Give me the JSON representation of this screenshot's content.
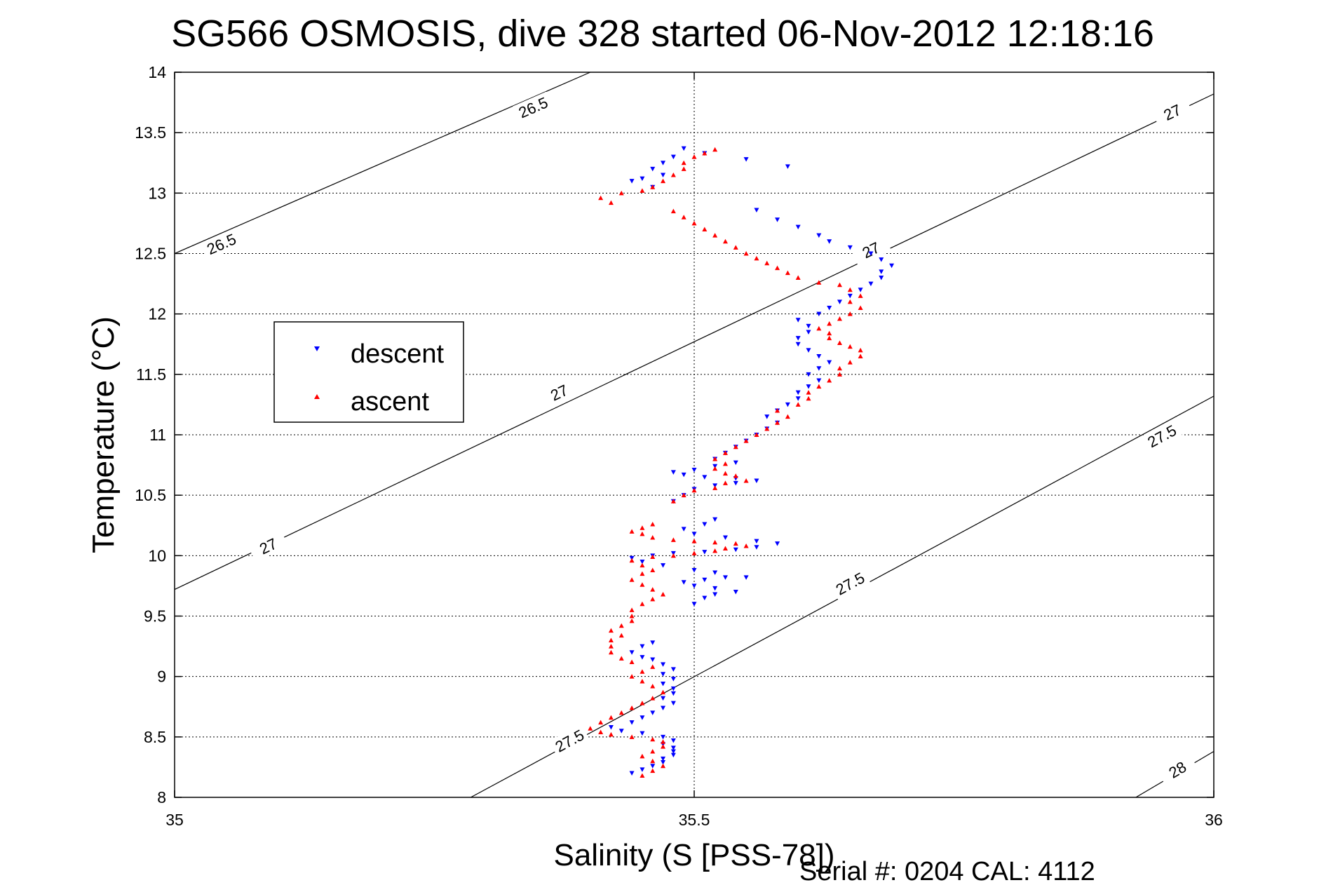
{
  "chart_data": {
    "type": "scatter",
    "title": "SG566 OSMOSIS, dive 328 started 06-Nov-2012 12:18:16",
    "xlabel": "Salinity (S [PSS-78])",
    "ylabel": "Temperature (°C)",
    "xlim": [
      35,
      36
    ],
    "ylim": [
      8,
      14
    ],
    "xticks": [
      "35",
      "35.5",
      "36"
    ],
    "yticks": [
      "8",
      "8.5",
      "9",
      "9.5",
      "10",
      "10.5",
      "11",
      "11.5",
      "12",
      "12.5",
      "13",
      "13.5",
      "14"
    ],
    "grid": true,
    "legend_position": "left-middle",
    "footer": "Serial #: 0204  CAL: 4112",
    "density_contours": [
      {
        "label": "26.5",
        "points": [
          [
            35.0,
            12.5
          ],
          [
            35.4,
            14.0
          ]
        ],
        "label_positions": [
          [
            35.045,
            12.58
          ],
          [
            35.345,
            13.71
          ]
        ]
      },
      {
        "label": "27",
        "points": [
          [
            35.0,
            9.72
          ],
          [
            36.0,
            13.82
          ]
        ],
        "label_positions": [
          [
            35.09,
            10.08
          ],
          [
            35.37,
            11.35
          ],
          [
            35.67,
            12.53
          ],
          [
            35.96,
            13.67
          ]
        ]
      },
      {
        "label": "27.5",
        "points": [
          [
            35.285,
            8.0
          ],
          [
            36.0,
            11.32
          ]
        ],
        "label_positions": [
          [
            35.38,
            8.47
          ],
          [
            35.65,
            9.77
          ],
          [
            35.95,
            10.99
          ]
        ]
      },
      {
        "label": "28",
        "points": [
          [
            35.925,
            8.0
          ],
          [
            36.0,
            8.38
          ]
        ],
        "label_positions": [
          [
            35.965,
            8.23
          ]
        ]
      }
    ],
    "series": [
      {
        "name": "descent",
        "color": "#0000ff",
        "marker": "triangle-down",
        "points": [
          [
            35.44,
            8.2
          ],
          [
            35.45,
            8.23
          ],
          [
            35.46,
            8.26
          ],
          [
            35.47,
            8.29
          ],
          [
            35.47,
            8.32
          ],
          [
            35.48,
            8.35
          ],
          [
            35.48,
            8.38
          ],
          [
            35.48,
            8.41
          ],
          [
            35.47,
            8.44
          ],
          [
            35.48,
            8.47
          ],
          [
            35.47,
            8.5
          ],
          [
            35.45,
            8.53
          ],
          [
            35.43,
            8.55
          ],
          [
            35.42,
            8.58
          ],
          [
            35.44,
            8.62
          ],
          [
            35.45,
            8.66
          ],
          [
            35.46,
            8.7
          ],
          [
            35.47,
            8.74
          ],
          [
            35.48,
            8.78
          ],
          [
            35.47,
            8.82
          ],
          [
            35.48,
            8.86
          ],
          [
            35.48,
            8.9
          ],
          [
            35.47,
            8.94
          ],
          [
            35.48,
            8.98
          ],
          [
            35.47,
            9.02
          ],
          [
            35.48,
            9.06
          ],
          [
            35.47,
            9.1
          ],
          [
            35.46,
            9.14
          ],
          [
            35.45,
            9.16
          ],
          [
            35.44,
            9.2
          ],
          [
            35.45,
            9.25
          ],
          [
            35.46,
            9.28
          ],
          [
            35.5,
            9.6
          ],
          [
            35.51,
            9.65
          ],
          [
            35.52,
            9.68
          ],
          [
            35.54,
            9.7
          ],
          [
            35.52,
            9.73
          ],
          [
            35.5,
            9.75
          ],
          [
            35.49,
            9.78
          ],
          [
            35.51,
            9.8
          ],
          [
            35.53,
            9.82
          ],
          [
            35.55,
            9.82
          ],
          [
            35.52,
            9.86
          ],
          [
            35.5,
            9.88
          ],
          [
            35.47,
            9.92
          ],
          [
            35.45,
            9.95
          ],
          [
            35.44,
            9.98
          ],
          [
            35.46,
            10.0
          ],
          [
            35.48,
            10.02
          ],
          [
            35.51,
            10.03
          ],
          [
            35.54,
            10.05
          ],
          [
            35.56,
            10.07
          ],
          [
            35.58,
            10.1
          ],
          [
            35.56,
            10.12
          ],
          [
            35.53,
            10.15
          ],
          [
            35.5,
            10.18
          ],
          [
            35.49,
            10.22
          ],
          [
            35.51,
            10.26
          ],
          [
            35.52,
            10.3
          ],
          [
            35.48,
            10.45
          ],
          [
            35.49,
            10.5
          ],
          [
            35.5,
            10.55
          ],
          [
            35.52,
            10.58
          ],
          [
            35.54,
            10.6
          ],
          [
            35.56,
            10.62
          ],
          [
            35.54,
            10.64
          ],
          [
            35.51,
            10.65
          ],
          [
            35.49,
            10.67
          ],
          [
            35.48,
            10.69
          ],
          [
            35.5,
            10.71
          ],
          [
            35.52,
            10.74
          ],
          [
            35.54,
            10.77
          ],
          [
            35.52,
            10.8
          ],
          [
            35.53,
            10.85
          ],
          [
            35.54,
            10.9
          ],
          [
            35.55,
            10.95
          ],
          [
            35.56,
            11.0
          ],
          [
            35.57,
            11.05
          ],
          [
            35.58,
            11.1
          ],
          [
            35.57,
            11.15
          ],
          [
            35.58,
            11.2
          ],
          [
            35.59,
            11.25
          ],
          [
            35.6,
            11.3
          ],
          [
            35.6,
            11.35
          ],
          [
            35.61,
            11.4
          ],
          [
            35.62,
            11.45
          ],
          [
            35.61,
            11.5
          ],
          [
            35.62,
            11.55
          ],
          [
            35.63,
            11.6
          ],
          [
            35.62,
            11.65
          ],
          [
            35.61,
            11.7
          ],
          [
            35.6,
            11.75
          ],
          [
            35.6,
            11.8
          ],
          [
            35.61,
            11.85
          ],
          [
            35.61,
            11.9
          ],
          [
            35.6,
            11.95
          ],
          [
            35.62,
            12.0
          ],
          [
            35.63,
            12.05
          ],
          [
            35.64,
            12.1
          ],
          [
            35.65,
            12.15
          ],
          [
            35.66,
            12.2
          ],
          [
            35.67,
            12.25
          ],
          [
            35.68,
            12.3
          ],
          [
            35.68,
            12.35
          ],
          [
            35.69,
            12.4
          ],
          [
            35.68,
            12.45
          ],
          [
            35.67,
            12.5
          ],
          [
            35.65,
            12.55
          ],
          [
            35.63,
            12.6
          ],
          [
            35.62,
            12.65
          ],
          [
            35.6,
            12.72
          ],
          [
            35.58,
            12.78
          ],
          [
            35.56,
            12.86
          ],
          [
            35.59,
            13.22
          ],
          [
            35.55,
            13.28
          ],
          [
            35.51,
            13.33
          ],
          [
            35.49,
            13.37
          ],
          [
            35.48,
            13.3
          ],
          [
            35.47,
            13.25
          ],
          [
            35.46,
            13.2
          ],
          [
            35.47,
            13.15
          ],
          [
            35.45,
            13.12
          ],
          [
            35.44,
            13.1
          ],
          [
            35.46,
            13.05
          ]
        ]
      },
      {
        "name": "ascent",
        "color": "#ff0000",
        "marker": "triangle-up",
        "points": [
          [
            35.45,
            8.18
          ],
          [
            35.46,
            8.22
          ],
          [
            35.47,
            8.26
          ],
          [
            35.46,
            8.3
          ],
          [
            35.45,
            8.34
          ],
          [
            35.46,
            8.38
          ],
          [
            35.47,
            8.42
          ],
          [
            35.47,
            8.46
          ],
          [
            35.46,
            8.48
          ],
          [
            35.44,
            8.5
          ],
          [
            35.42,
            8.52
          ],
          [
            35.41,
            8.54
          ],
          [
            35.4,
            8.57
          ],
          [
            35.41,
            8.62
          ],
          [
            35.42,
            8.66
          ],
          [
            35.43,
            8.7
          ],
          [
            35.44,
            8.74
          ],
          [
            35.45,
            8.78
          ],
          [
            35.46,
            8.82
          ],
          [
            35.47,
            8.87
          ],
          [
            35.46,
            8.92
          ],
          [
            35.45,
            8.96
          ],
          [
            35.44,
            9.0
          ],
          [
            35.45,
            9.04
          ],
          [
            35.46,
            9.08
          ],
          [
            35.44,
            9.12
          ],
          [
            35.43,
            9.15
          ],
          [
            35.42,
            9.2
          ],
          [
            35.42,
            9.25
          ],
          [
            35.42,
            9.3
          ],
          [
            35.43,
            9.34
          ],
          [
            35.42,
            9.38
          ],
          [
            35.43,
            9.42
          ],
          [
            35.44,
            9.46
          ],
          [
            35.44,
            9.5
          ],
          [
            35.44,
            9.55
          ],
          [
            35.45,
            9.6
          ],
          [
            35.46,
            9.64
          ],
          [
            35.47,
            9.68
          ],
          [
            35.46,
            9.72
          ],
          [
            35.45,
            9.76
          ],
          [
            35.44,
            9.8
          ],
          [
            35.45,
            9.85
          ],
          [
            35.46,
            9.88
          ],
          [
            35.45,
            9.92
          ],
          [
            35.44,
            9.96
          ],
          [
            35.46,
            9.99
          ],
          [
            35.48,
            10.0
          ],
          [
            35.5,
            10.02
          ],
          [
            35.52,
            10.04
          ],
          [
            35.53,
            10.06
          ],
          [
            35.55,
            10.08
          ],
          [
            35.54,
            10.1
          ],
          [
            35.52,
            10.11
          ],
          [
            35.5,
            10.12
          ],
          [
            35.48,
            10.13
          ],
          [
            35.46,
            10.15
          ],
          [
            35.45,
            10.18
          ],
          [
            35.44,
            10.2
          ],
          [
            35.45,
            10.23
          ],
          [
            35.46,
            10.26
          ],
          [
            35.48,
            10.45
          ],
          [
            35.49,
            10.5
          ],
          [
            35.5,
            10.54
          ],
          [
            35.52,
            10.56
          ],
          [
            35.53,
            10.6
          ],
          [
            35.55,
            10.62
          ],
          [
            35.54,
            10.66
          ],
          [
            35.53,
            10.68
          ],
          [
            35.52,
            10.72
          ],
          [
            35.53,
            10.76
          ],
          [
            35.52,
            10.8
          ],
          [
            35.53,
            10.85
          ],
          [
            35.54,
            10.9
          ],
          [
            35.55,
            10.95
          ],
          [
            35.56,
            11.0
          ],
          [
            35.57,
            11.05
          ],
          [
            35.58,
            11.1
          ],
          [
            35.59,
            11.15
          ],
          [
            35.58,
            11.2
          ],
          [
            35.6,
            11.25
          ],
          [
            35.61,
            11.3
          ],
          [
            35.61,
            11.35
          ],
          [
            35.62,
            11.4
          ],
          [
            35.63,
            11.45
          ],
          [
            35.64,
            11.5
          ],
          [
            35.64,
            11.55
          ],
          [
            35.65,
            11.6
          ],
          [
            35.66,
            11.65
          ],
          [
            35.66,
            11.7
          ],
          [
            35.65,
            11.73
          ],
          [
            35.64,
            11.76
          ],
          [
            35.63,
            11.8
          ],
          [
            35.63,
            11.84
          ],
          [
            35.62,
            11.88
          ],
          [
            35.63,
            11.92
          ],
          [
            35.64,
            11.96
          ],
          [
            35.65,
            12.0
          ],
          [
            35.66,
            12.05
          ],
          [
            35.65,
            12.1
          ],
          [
            35.66,
            12.15
          ],
          [
            35.65,
            12.2
          ],
          [
            35.64,
            12.24
          ],
          [
            35.62,
            12.26
          ],
          [
            35.6,
            12.3
          ],
          [
            35.59,
            12.34
          ],
          [
            35.58,
            12.38
          ],
          [
            35.57,
            12.42
          ],
          [
            35.56,
            12.46
          ],
          [
            35.55,
            12.5
          ],
          [
            35.54,
            12.55
          ],
          [
            35.53,
            12.6
          ],
          [
            35.52,
            12.65
          ],
          [
            35.51,
            12.7
          ],
          [
            35.5,
            12.75
          ],
          [
            35.49,
            12.8
          ],
          [
            35.48,
            12.85
          ],
          [
            35.42,
            12.92
          ],
          [
            35.41,
            12.96
          ],
          [
            35.43,
            13.0
          ],
          [
            35.45,
            13.02
          ],
          [
            35.46,
            13.05
          ],
          [
            35.47,
            13.1
          ],
          [
            35.48,
            13.15
          ],
          [
            35.49,
            13.2
          ],
          [
            35.49,
            13.25
          ],
          [
            35.5,
            13.3
          ],
          [
            35.51,
            13.33
          ],
          [
            35.52,
            13.36
          ]
        ]
      }
    ]
  }
}
